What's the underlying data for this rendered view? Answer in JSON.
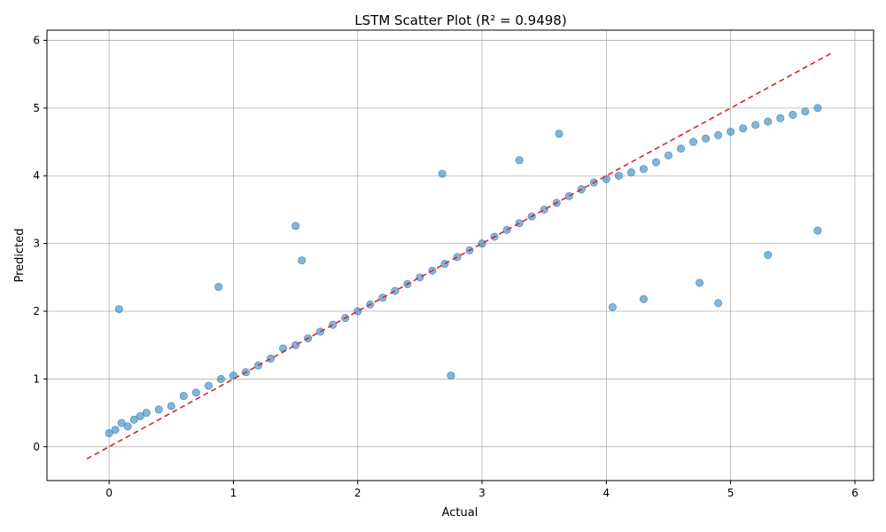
{
  "chart_data": {
    "type": "scatter",
    "title": "LSTM Scatter Plot (R² = 0.9498)",
    "xlabel": "Actual",
    "ylabel": "Predicted",
    "xlim": [
      -0.5,
      6.15
    ],
    "ylim": [
      -0.5,
      6.15
    ],
    "xticks": [
      "0",
      "1",
      "2",
      "3",
      "4",
      "5",
      "6"
    ],
    "yticks": [
      "0",
      "1",
      "2",
      "3",
      "4",
      "5",
      "6"
    ],
    "grid": true,
    "colors": {
      "points": "#1f77b4",
      "reference_line": "#d62728"
    },
    "series": [
      {
        "style": "points",
        "x": [
          0.0,
          0.05,
          0.1,
          0.15,
          0.2,
          0.25,
          0.3,
          0.4,
          0.5,
          0.6,
          0.7,
          0.8,
          0.9,
          1.0,
          1.1,
          1.2,
          1.3,
          1.4,
          1.5,
          1.6,
          1.7,
          1.8,
          1.9,
          2.0,
          2.1,
          2.2,
          2.3,
          2.4,
          2.5,
          2.6,
          2.7,
          2.8,
          2.9,
          3.0,
          3.1,
          3.2,
          3.3,
          3.4,
          3.5,
          3.6,
          3.7,
          3.8,
          3.9,
          4.0,
          4.1,
          4.2,
          4.3,
          4.4,
          4.5,
          4.6,
          4.7,
          4.8,
          4.9,
          5.0,
          5.1,
          5.2,
          5.3,
          5.4,
          5.5,
          5.6,
          5.7,
          0.08,
          0.88,
          1.5,
          1.55,
          2.68,
          2.75,
          3.62,
          4.05,
          4.3,
          4.9,
          5.3,
          5.7,
          3.3,
          4.75
        ],
        "y": [
          0.2,
          0.25,
          0.35,
          0.3,
          0.4,
          0.45,
          0.5,
          0.55,
          0.6,
          0.75,
          0.8,
          0.9,
          1.0,
          1.05,
          1.1,
          1.2,
          1.3,
          1.45,
          1.5,
          1.6,
          1.7,
          1.8,
          1.9,
          2.0,
          2.1,
          2.2,
          2.3,
          2.4,
          2.5,
          2.6,
          2.7,
          2.8,
          2.9,
          3.0,
          3.1,
          3.2,
          3.3,
          3.4,
          3.5,
          3.6,
          3.7,
          3.8,
          3.9,
          3.95,
          4.0,
          4.05,
          4.1,
          4.2,
          4.3,
          4.4,
          4.5,
          4.55,
          4.6,
          4.65,
          4.7,
          4.75,
          4.8,
          4.85,
          4.9,
          4.95,
          5.0,
          2.03,
          2.36,
          3.26,
          2.75,
          4.03,
          1.05,
          4.62,
          2.06,
          2.18,
          2.12,
          2.83,
          3.19,
          4.23,
          2.42
        ]
      },
      {
        "style": "dashed-line",
        "x": [
          -0.18,
          5.82
        ],
        "y": [
          -0.18,
          5.82
        ]
      }
    ]
  }
}
